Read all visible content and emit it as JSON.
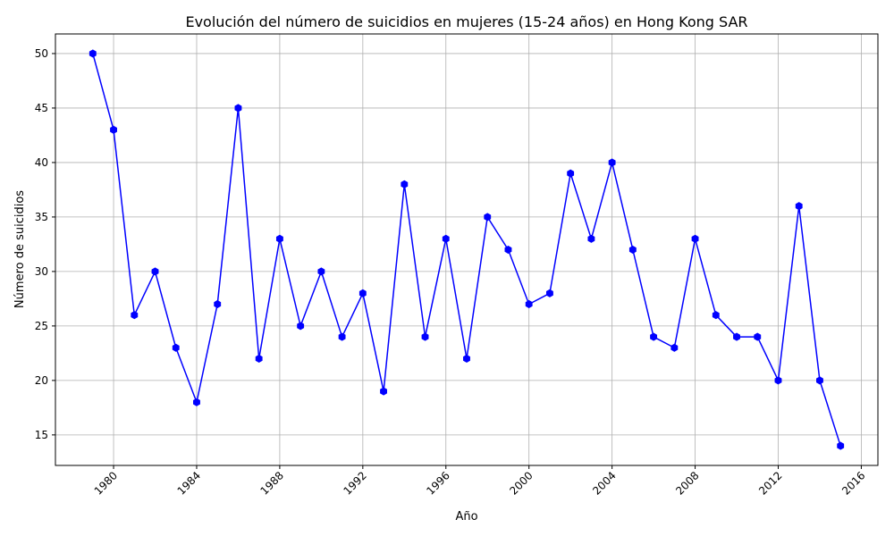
{
  "chart_data": {
    "type": "line",
    "title": "Evolución del número de suicidios en mujeres (15-24 años) en Hong Kong SAR",
    "xlabel": "Año",
    "ylabel": "Número de suicidios",
    "xlim": [
      1977.2,
      2016.8
    ],
    "ylim": [
      12.2,
      51.8
    ],
    "xticks": [
      1980,
      1984,
      1988,
      1992,
      1996,
      2000,
      2004,
      2008,
      2012,
      2016
    ],
    "yticks": [
      15,
      20,
      25,
      30,
      35,
      40,
      45,
      50
    ],
    "grid": true,
    "line_color": "#0000ff",
    "marker_color": "#0000ff",
    "series": [
      {
        "x": [
          1979,
          1980,
          1981,
          1982,
          1983,
          1984,
          1985,
          1986,
          1987,
          1988,
          1989,
          1990,
          1991,
          1992,
          1993,
          1994,
          1995,
          1996,
          1997,
          1998,
          1999,
          2000,
          2001,
          2002,
          2003,
          2004,
          2005,
          2006,
          2007,
          2008,
          2009,
          2010,
          2011,
          2012,
          2013,
          2014,
          2015
        ],
        "values": [
          50,
          43,
          26,
          30,
          23,
          18,
          27,
          45,
          22,
          33,
          25,
          30,
          24,
          28,
          19,
          38,
          24,
          33,
          22,
          35,
          32,
          27,
          28,
          39,
          33,
          40,
          32,
          24,
          23,
          33,
          26,
          24,
          24,
          20,
          36,
          20,
          14
        ]
      }
    ]
  }
}
